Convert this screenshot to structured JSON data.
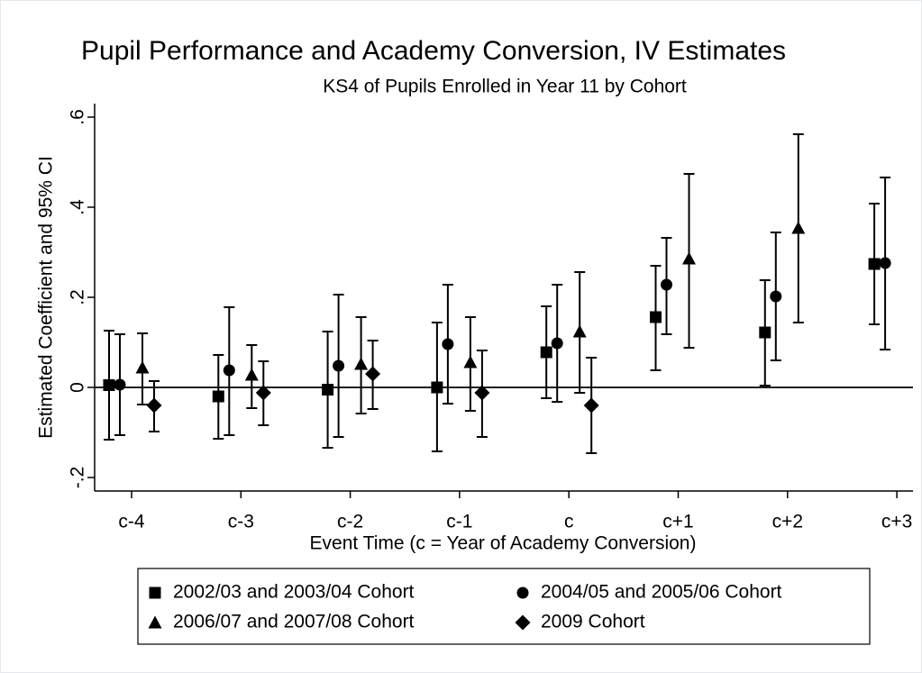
{
  "chart_data": {
    "type": "errorbar",
    "title": "Pupil Performance and Academy Conversion, IV Estimates",
    "subtitle": "KS4 of Pupils Enrolled in Year 11 by Cohort",
    "x_label": "Event Time (c = Year of Academy Conversion)",
    "y_label": "Estimated Coefficient and 95% CI",
    "categories": [
      "c-4",
      "c-3",
      "c-2",
      "c-1",
      "c",
      "c+1",
      "c+2",
      "c+3"
    ],
    "ylim": [
      -0.23,
      0.63
    ],
    "yticks": [
      {
        "value": -0.2,
        "label": "-.2"
      },
      0,
      {
        "value": 0.2,
        "label": ".2"
      },
      {
        "value": 0.4,
        "label": ".4"
      },
      {
        "value": 0.6,
        "label": ".6"
      }
    ],
    "reference_line": 0,
    "series": [
      {
        "name": "2002/03 and 2003/04 Cohort",
        "marker": "square",
        "color": "#000000",
        "values": [
          0.005,
          -0.02,
          -0.005,
          0.0,
          0.078,
          0.156,
          0.122,
          0.274
        ],
        "lower": [
          -0.116,
          -0.114,
          -0.134,
          -0.142,
          -0.024,
          0.038,
          0.004,
          0.14
        ],
        "upper": [
          0.126,
          0.072,
          0.124,
          0.144,
          0.18,
          0.27,
          0.238,
          0.408
        ]
      },
      {
        "name": "2004/05 and 2005/06  Cohort",
        "marker": "circle",
        "color": "#000000",
        "values": [
          0.006,
          0.038,
          0.048,
          0.096,
          0.098,
          0.228,
          0.202,
          0.276
        ],
        "lower": [
          -0.106,
          -0.106,
          -0.11,
          -0.036,
          -0.032,
          0.118,
          0.06,
          0.084
        ],
        "upper": [
          0.118,
          0.178,
          0.206,
          0.228,
          0.228,
          0.332,
          0.344,
          0.466
        ]
      },
      {
        "name": "2006/07 and 2007/08 Cohort",
        "marker": "triangle",
        "color": "#000000",
        "values": [
          0.044,
          0.028,
          0.052,
          0.056,
          0.124,
          0.286,
          0.354,
          null
        ],
        "lower": [
          -0.038,
          -0.046,
          -0.058,
          -0.052,
          -0.012,
          0.088,
          0.144,
          null
        ],
        "upper": [
          0.12,
          0.094,
          0.156,
          0.156,
          0.256,
          0.474,
          0.562,
          null
        ]
      },
      {
        "name": "2009 Cohort",
        "marker": "diamond",
        "color": "#000000",
        "values": [
          -0.04,
          -0.012,
          0.03,
          -0.012,
          -0.04,
          null,
          null,
          null
        ],
        "lower": [
          -0.098,
          -0.084,
          -0.048,
          -0.11,
          -0.146,
          null,
          null,
          null
        ],
        "upper": [
          0.014,
          0.058,
          0.104,
          0.082,
          0.066,
          null,
          null,
          null
        ]
      }
    ]
  }
}
